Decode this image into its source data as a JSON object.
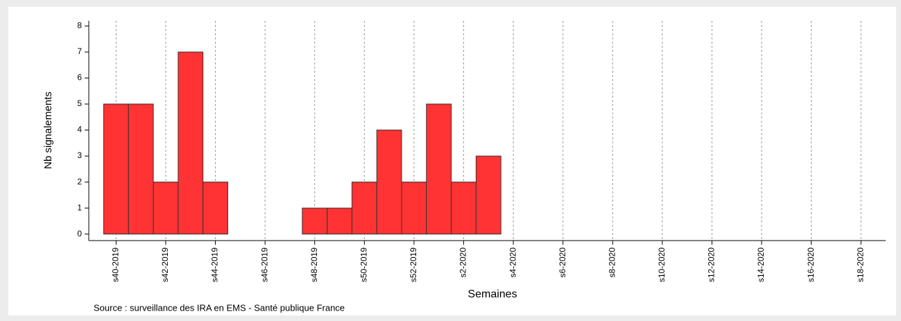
{
  "chart_data": {
    "type": "bar",
    "x_label": "Semaines",
    "y_label": "Nb signalements",
    "source": "Source : surveillance des IRA en EMS - Santé publique France",
    "categories": [
      "s40-2019",
      null,
      "s42-2019",
      null,
      "s44-2019",
      null,
      "s46-2019",
      null,
      "s48-2019",
      null,
      "s50-2019",
      null,
      "s52-2019",
      null,
      "s2-2020",
      null,
      "s4-2020",
      null,
      "s6-2020",
      null,
      "s8-2020",
      null,
      "s10-2020",
      null,
      "s12-2020",
      null,
      "s14-2020",
      null,
      "s16-2020",
      null,
      "s18-2020"
    ],
    "values": [
      5,
      5,
      2,
      7,
      2,
      null,
      null,
      null,
      1,
      1,
      2,
      4,
      2,
      5,
      2,
      3,
      null,
      null,
      null,
      null,
      null,
      null,
      null,
      null,
      null,
      null,
      null,
      null,
      null,
      null,
      null
    ],
    "color": "#ff3333",
    "ylim": [
      -0.25,
      8.2
    ],
    "yticks": [
      0,
      1,
      2,
      3,
      4,
      5,
      6,
      7,
      8
    ],
    "grid": true
  }
}
